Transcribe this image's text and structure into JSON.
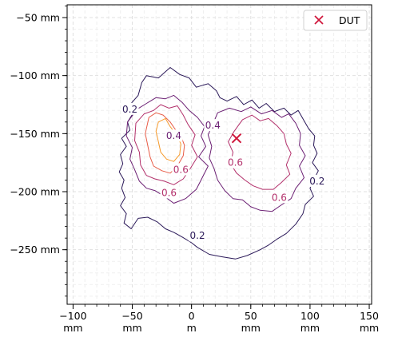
{
  "chart_data": {
    "type": "contour",
    "title": "",
    "xlabel": "",
    "ylabel": "",
    "xlim": [
      -105,
      152
    ],
    "ylim": [
      -297,
      -39
    ],
    "grid": true,
    "x_ticks": [
      {
        "value": -100,
        "line1": "−100",
        "line2": "mm"
      },
      {
        "value": -50,
        "line1": "−50",
        "line2": "mm"
      },
      {
        "value": 0,
        "line1": "0",
        "line2": "m"
      },
      {
        "value": 50,
        "line1": "50",
        "line2": "mm"
      },
      {
        "value": 100,
        "line1": "100",
        "line2": "mm"
      },
      {
        "value": 150,
        "line1": "150",
        "line2": "mm"
      }
    ],
    "y_ticks": [
      {
        "value": -50,
        "label": "−50 mm"
      },
      {
        "value": -100,
        "label": "−100 mm"
      },
      {
        "value": -150,
        "label": "−150 mm"
      },
      {
        "value": -200,
        "label": "−200 mm"
      },
      {
        "value": -250,
        "label": "−250 mm"
      }
    ],
    "contours": [
      {
        "level": 0.2,
        "color": "#2a1858",
        "paths": [
          [
            [
              -42,
              -106
            ],
            [
              -38,
              -100
            ],
            [
              -28,
              -102
            ],
            [
              -18,
              -93
            ],
            [
              -10,
              -99
            ],
            [
              -2,
              -102
            ],
            [
              4,
              -110
            ],
            [
              14,
              -107
            ],
            [
              21,
              -113
            ],
            [
              24,
              -119
            ],
            [
              30,
              -122
            ],
            [
              38,
              -118
            ],
            [
              44,
              -125
            ],
            [
              51,
              -121
            ],
            [
              57,
              -128
            ],
            [
              63,
              -124
            ],
            [
              70,
              -131
            ],
            [
              78,
              -128
            ],
            [
              84,
              -134
            ],
            [
              90,
              -130
            ],
            [
              95,
              -139
            ],
            [
              99,
              -146
            ],
            [
              104,
              -152
            ],
            [
              103,
              -160
            ],
            [
              106,
              -167
            ],
            [
              102,
              -175
            ],
            [
              107,
              -182
            ],
            [
              103,
              -190
            ],
            [
              100,
              -197
            ],
            [
              103,
              -204
            ],
            [
              96,
              -211
            ],
            [
              94,
              -219
            ],
            [
              88,
              -228
            ],
            [
              80,
              -236
            ],
            [
              72,
              -241
            ],
            [
              65,
              -246
            ],
            [
              58,
              -250
            ],
            [
              47,
              -255
            ],
            [
              37,
              -258
            ],
            [
              25,
              -256
            ],
            [
              15,
              -254
            ],
            [
              5,
              -248
            ],
            [
              0,
              -244
            ],
            [
              -8,
              -239
            ],
            [
              -15,
              -235
            ],
            [
              -22,
              -232
            ],
            [
              -29,
              -226
            ],
            [
              -37,
              -222
            ],
            [
              -45,
              -223
            ],
            [
              -51,
              -232
            ],
            [
              -57,
              -227
            ],
            [
              -55,
              -219
            ],
            [
              -60,
              -212
            ],
            [
              -56,
              -205
            ],
            [
              -59,
              -197
            ],
            [
              -57,
              -190
            ],
            [
              -61,
              -183
            ],
            [
              -58,
              -176
            ],
            [
              -60,
              -168
            ],
            [
              -55,
              -161
            ],
            [
              -59,
              -154
            ],
            [
              -52,
              -147
            ],
            [
              -54,
              -140
            ],
            [
              -49,
              -132
            ],
            [
              -51,
              -124
            ],
            [
              -45,
              -117
            ],
            [
              -42,
              -106
            ]
          ]
        ]
      },
      {
        "level": 0.4,
        "color": "#6b1f73",
        "paths": [
          [
            [
              -54,
              -140
            ],
            [
              -46,
              -129
            ],
            [
              -38,
              -124
            ],
            [
              -30,
              -119
            ],
            [
              -22,
              -120
            ],
            [
              -15,
              -117
            ],
            [
              -8,
              -123
            ],
            [
              -2,
              -130
            ],
            [
              5,
              -136
            ],
            [
              11,
              -144
            ],
            [
              8,
              -152
            ],
            [
              12,
              -161
            ],
            [
              6,
              -170
            ],
            [
              14,
              -178
            ],
            [
              9,
              -188
            ],
            [
              4,
              -198
            ],
            [
              -5,
              -206
            ],
            [
              -15,
              -210
            ],
            [
              -23,
              -204
            ],
            [
              -31,
              -199
            ],
            [
              -38,
              -197
            ],
            [
              -44,
              -191
            ],
            [
              -48,
              -181
            ],
            [
              -52,
              -172
            ],
            [
              -50,
              -162
            ],
            [
              -55,
              -152
            ],
            [
              -54,
              -140
            ]
          ],
          [
            [
              22,
              -132
            ],
            [
              32,
              -128
            ],
            [
              42,
              -131
            ],
            [
              50,
              -127
            ],
            [
              59,
              -133
            ],
            [
              68,
              -130
            ],
            [
              76,
              -136
            ],
            [
              82,
              -133
            ],
            [
              88,
              -141
            ],
            [
              92,
              -150
            ],
            [
              91,
              -160
            ],
            [
              96,
              -169
            ],
            [
              91,
              -178
            ],
            [
              95,
              -188
            ],
            [
              88,
              -197
            ],
            [
              84,
              -206
            ],
            [
              75,
              -212
            ],
            [
              68,
              -217
            ],
            [
              58,
              -216
            ],
            [
              50,
              -213
            ],
            [
              43,
              -207
            ],
            [
              35,
              -206
            ],
            [
              28,
              -199
            ],
            [
              22,
              -190
            ],
            [
              19,
              -180
            ],
            [
              15,
              -171
            ],
            [
              17,
              -161
            ],
            [
              14,
              -151
            ],
            [
              18,
              -142
            ],
            [
              22,
              -132
            ]
          ]
        ]
      },
      {
        "level": 0.6,
        "color": "#b3306b",
        "paths": [
          [
            [
              -47,
              -141
            ],
            [
              -40,
              -133
            ],
            [
              -32,
              -130
            ],
            [
              -26,
              -125
            ],
            [
              -19,
              -128
            ],
            [
              -12,
              -126
            ],
            [
              -7,
              -134
            ],
            [
              -3,
              -142
            ],
            [
              3,
              -151
            ],
            [
              0,
              -160
            ],
            [
              5,
              -170
            ],
            [
              -1,
              -180
            ],
            [
              -7,
              -189
            ],
            [
              -15,
              -194
            ],
            [
              -23,
              -191
            ],
            [
              -31,
              -189
            ],
            [
              -38,
              -186
            ],
            [
              -43,
              -177
            ],
            [
              -44,
              -166
            ],
            [
              -48,
              -156
            ],
            [
              -47,
              -141
            ]
          ],
          [
            [
              43,
              -138
            ],
            [
              51,
              -134
            ],
            [
              58,
              -139
            ],
            [
              65,
              -137
            ],
            [
              72,
              -143
            ],
            [
              78,
              -150
            ],
            [
              80,
              -159
            ],
            [
              84,
              -167
            ],
            [
              80,
              -177
            ],
            [
              83,
              -185
            ],
            [
              76,
              -192
            ],
            [
              69,
              -198
            ],
            [
              60,
              -198
            ],
            [
              52,
              -195
            ],
            [
              45,
              -190
            ],
            [
              38,
              -184
            ],
            [
              33,
              -176
            ],
            [
              35,
              -166
            ],
            [
              31,
              -157
            ],
            [
              36,
              -148
            ],
            [
              43,
              -138
            ]
          ]
        ]
      },
      {
        "level": 0.8,
        "color": "#e85c47",
        "paths": [
          [
            [
              -36,
              -136
            ],
            [
              -30,
              -132
            ],
            [
              -24,
              -134
            ],
            [
              -18,
              -140
            ],
            [
              -14,
              -146
            ],
            [
              -9,
              -152
            ],
            [
              -6,
              -160
            ],
            [
              -7,
              -169
            ],
            [
              -12,
              -178
            ],
            [
              -18,
              -184
            ],
            [
              -25,
              -182
            ],
            [
              -32,
              -178
            ],
            [
              -35,
              -170
            ],
            [
              -37,
              -160
            ],
            [
              -39,
              -150
            ],
            [
              -36,
              -136
            ]
          ]
        ]
      },
      {
        "level": 1.0,
        "color": "#f69a2c",
        "paths": [
          [
            [
              -28,
              -140
            ],
            [
              -22,
              -137
            ],
            [
              -18,
              -144
            ],
            [
              -12,
              -152
            ],
            [
              -9,
              -159
            ],
            [
              -10,
              -168
            ],
            [
              -15,
              -174
            ],
            [
              -21,
              -172
            ],
            [
              -26,
              -166
            ],
            [
              -28,
              -157
            ],
            [
              -30,
              -148
            ],
            [
              -28,
              -140
            ]
          ]
        ]
      }
    ],
    "contour_labels": [
      {
        "text": "0.2",
        "x": -52,
        "y": -129,
        "color": "#2a1858"
      },
      {
        "text": "0.2",
        "x": 5,
        "y": -238,
        "color": "#2a1858"
      },
      {
        "text": "0.2",
        "x": 106,
        "y": -191,
        "color": "#2a1858"
      },
      {
        "text": "0.4",
        "x": 18,
        "y": -143,
        "color": "#6b1f73"
      },
      {
        "text": "0.4",
        "x": -15,
        "y": -152,
        "color": "#6b1f73"
      },
      {
        "text": "0.6",
        "x": 37,
        "y": -175,
        "color": "#b3306b"
      },
      {
        "text": "0.6",
        "x": -9,
        "y": -181,
        "color": "#b3306b"
      },
      {
        "text": "0.6",
        "x": 74,
        "y": -205,
        "color": "#b3306b"
      },
      {
        "text": "0.6",
        "x": -19,
        "y": -201,
        "color": "#b3306b"
      }
    ],
    "markers": [
      {
        "name": "DUT",
        "x": 38,
        "y": -154,
        "color": "#d0173c",
        "symbol": "x"
      }
    ],
    "legend": {
      "position": "upper-right",
      "entries": [
        {
          "label": "DUT",
          "color": "#d0173c",
          "symbol": "x"
        }
      ]
    }
  }
}
